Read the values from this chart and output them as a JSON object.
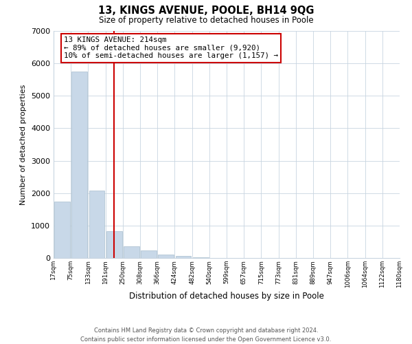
{
  "title": "13, KINGS AVENUE, POOLE, BH14 9QG",
  "subtitle": "Size of property relative to detached houses in Poole",
  "xlabel": "Distribution of detached houses by size in Poole",
  "ylabel": "Number of detached properties",
  "bar_color": "#c8d8e8",
  "bar_edge_color": "#a8bece",
  "bar_heights": [
    1750,
    5750,
    2070,
    830,
    370,
    230,
    110,
    60,
    30,
    10,
    5,
    3,
    1,
    0,
    0,
    0,
    0,
    0,
    0,
    0
  ],
  "bin_labels": [
    "17sqm",
    "75sqm",
    "133sqm",
    "191sqm",
    "250sqm",
    "308sqm",
    "366sqm",
    "424sqm",
    "482sqm",
    "540sqm",
    "599sqm",
    "657sqm",
    "715sqm",
    "773sqm",
    "831sqm",
    "889sqm",
    "947sqm",
    "1006sqm",
    "1064sqm",
    "1122sqm",
    "1180sqm"
  ],
  "ylim": [
    0,
    7000
  ],
  "yticks": [
    0,
    1000,
    2000,
    3000,
    4000,
    5000,
    6000,
    7000
  ],
  "vline_color": "#cc0000",
  "annotation_title": "13 KINGS AVENUE: 214sqm",
  "annotation_line1": "← 89% of detached houses are smaller (9,920)",
  "annotation_line2": "10% of semi-detached houses are larger (1,157) →",
  "annotation_box_color": "#cc0000",
  "footer_line1": "Contains HM Land Registry data © Crown copyright and database right 2024.",
  "footer_line2": "Contains public sector information licensed under the Open Government Licence v3.0.",
  "background_color": "#ffffff",
  "grid_color": "#c8d4e0"
}
